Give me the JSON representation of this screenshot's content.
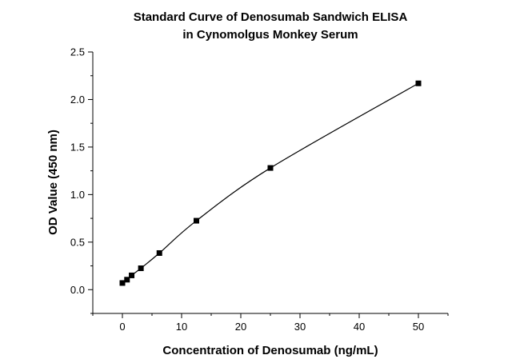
{
  "chart_data": {
    "type": "scatter",
    "title": [
      "Standard Curve of Denosumab Sandwich ELISA",
      "in Cynomolgus Monkey Serum"
    ],
    "xlabel": "Concentration of Denosumab (ng/mL)",
    "ylabel": "OD Value (450 nm)",
    "xlim": [
      -5,
      55
    ],
    "ylim": [
      -0.25,
      2.5
    ],
    "xticks": [
      0,
      10,
      20,
      30,
      40,
      50
    ],
    "xtick_labels": [
      "0",
      "10",
      "20",
      "30",
      "40",
      "50"
    ],
    "yticks": [
      0.0,
      0.5,
      1.0,
      1.5,
      2.0,
      2.5
    ],
    "ytick_labels": [
      "0.0",
      "0.5",
      "1.0",
      "1.5",
      "2.0",
      "2.5"
    ],
    "grid": false,
    "legend": "none",
    "fit_line": true,
    "series": [
      {
        "x": [
          0,
          0.78,
          1.56,
          3.125,
          6.25,
          12.5,
          25,
          50
        ],
        "y": [
          0.07,
          0.105,
          0.15,
          0.225,
          0.385,
          0.725,
          1.28,
          2.17
        ]
      }
    ],
    "colors": {
      "marker": "#000000",
      "line": "#000000"
    }
  }
}
